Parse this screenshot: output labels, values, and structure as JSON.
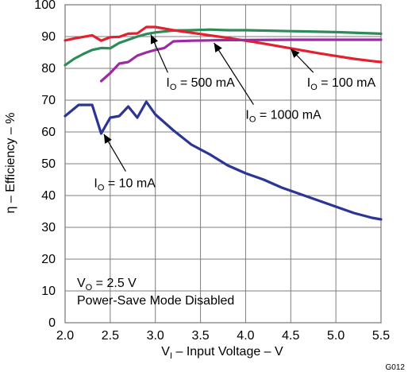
{
  "chart_data": {
    "type": "line",
    "xlabel": {
      "main": "V",
      "sub": "I",
      "rest": " – Input Voltage – V"
    },
    "ylabel": "η – Efficiency – %",
    "xlim": [
      2.0,
      5.5
    ],
    "ylim": [
      0,
      100
    ],
    "xticks": [
      "2.0",
      "2.5",
      "3.0",
      "3.5",
      "4.0",
      "4.5",
      "5.0",
      "5.5"
    ],
    "yticks": [
      "0",
      "10",
      "20",
      "30",
      "40",
      "50",
      "60",
      "70",
      "80",
      "90",
      "100"
    ],
    "grid": true,
    "series": [
      {
        "key": "io10",
        "label_main": "I",
        "label_sub": "O",
        "label_rest": " = 10 mA",
        "color": "#2b3596",
        "x": [
          2.0,
          2.15,
          2.3,
          2.4,
          2.5,
          2.6,
          2.7,
          2.8,
          2.9,
          3.0,
          3.2,
          3.4,
          3.6,
          3.8,
          4.0,
          4.2,
          4.4,
          4.6,
          4.8,
          5.0,
          5.2,
          5.4,
          5.5
        ],
        "values": [
          65,
          68.5,
          68.5,
          59.5,
          64.5,
          65,
          68,
          64.5,
          69.5,
          65.5,
          60.5,
          56,
          53,
          49.5,
          47,
          45,
          42.5,
          40.5,
          38.5,
          36.5,
          34.5,
          33,
          32.5
        ]
      },
      {
        "key": "io500",
        "label_main": "I",
        "label_sub": "O",
        "label_rest": " = 500 mA",
        "color": "#2e8b57",
        "x": [
          2.0,
          2.1,
          2.2,
          2.3,
          2.4,
          2.5,
          2.6,
          2.7,
          2.8,
          2.9,
          3.0,
          3.2,
          3.4,
          3.6,
          3.8,
          4.0,
          4.5,
          5.0,
          5.5
        ],
        "values": [
          81,
          83,
          84.5,
          85.8,
          86.4,
          86.3,
          88,
          89,
          90,
          90.8,
          91.3,
          91.9,
          92,
          92.2,
          92,
          92,
          91.7,
          91.4,
          90.9
        ]
      },
      {
        "key": "io100",
        "label_main": "I",
        "label_sub": "O",
        "label_rest": " = 100 mA",
        "color": "#e3202f",
        "x": [
          2.0,
          2.1,
          2.2,
          2.3,
          2.4,
          2.5,
          2.6,
          2.7,
          2.8,
          2.9,
          3.0,
          3.2,
          3.4,
          3.6,
          3.8,
          4.0,
          4.2,
          4.4,
          4.6,
          4.8,
          5.0,
          5.2,
          5.4,
          5.5
        ],
        "values": [
          88.8,
          89.4,
          89.9,
          90.4,
          88.7,
          89.8,
          89.9,
          90.9,
          91,
          93,
          93,
          92,
          91.2,
          90.4,
          89.6,
          88.7,
          87.8,
          86.8,
          85.8,
          84.8,
          83.9,
          83,
          82.3,
          82
        ]
      },
      {
        "key": "io1000",
        "label_main": "I",
        "label_sub": "O",
        "label_rest": " = 1000 mA",
        "color": "#9b2aa3",
        "x": [
          2.4,
          2.5,
          2.6,
          2.7,
          2.8,
          2.9,
          3.0,
          3.1,
          3.2,
          3.4,
          3.6,
          3.8,
          4.0,
          4.5,
          5.0,
          5.5
        ],
        "values": [
          76,
          78.5,
          81.5,
          82,
          84,
          85,
          85.8,
          86.4,
          88.5,
          88.7,
          88.8,
          88.9,
          88.9,
          89,
          89,
          89
        ]
      }
    ],
    "annotations": [
      {
        "key": "io10",
        "anchor": [
          2.43,
          59.3
        ],
        "label_pos": [
          2.32,
          42.6
        ]
      },
      {
        "key": "io500",
        "anchor": [
          2.95,
          90.6
        ],
        "label_pos": [
          3.12,
          74.2
        ]
      },
      {
        "key": "io100",
        "anchor": [
          4.5,
          86.1
        ],
        "label_pos": [
          4.68,
          74.2
        ]
      },
      {
        "key": "io1000",
        "anchor": [
          3.65,
          88.0
        ],
        "label_pos": [
          4.0,
          64.1
        ]
      }
    ],
    "note_line1": {
      "main": "V",
      "sub": "O",
      "rest": " = 2.5 V"
    },
    "note_line2": "Power-Save Mode Disabled",
    "figure_id": "G012"
  }
}
